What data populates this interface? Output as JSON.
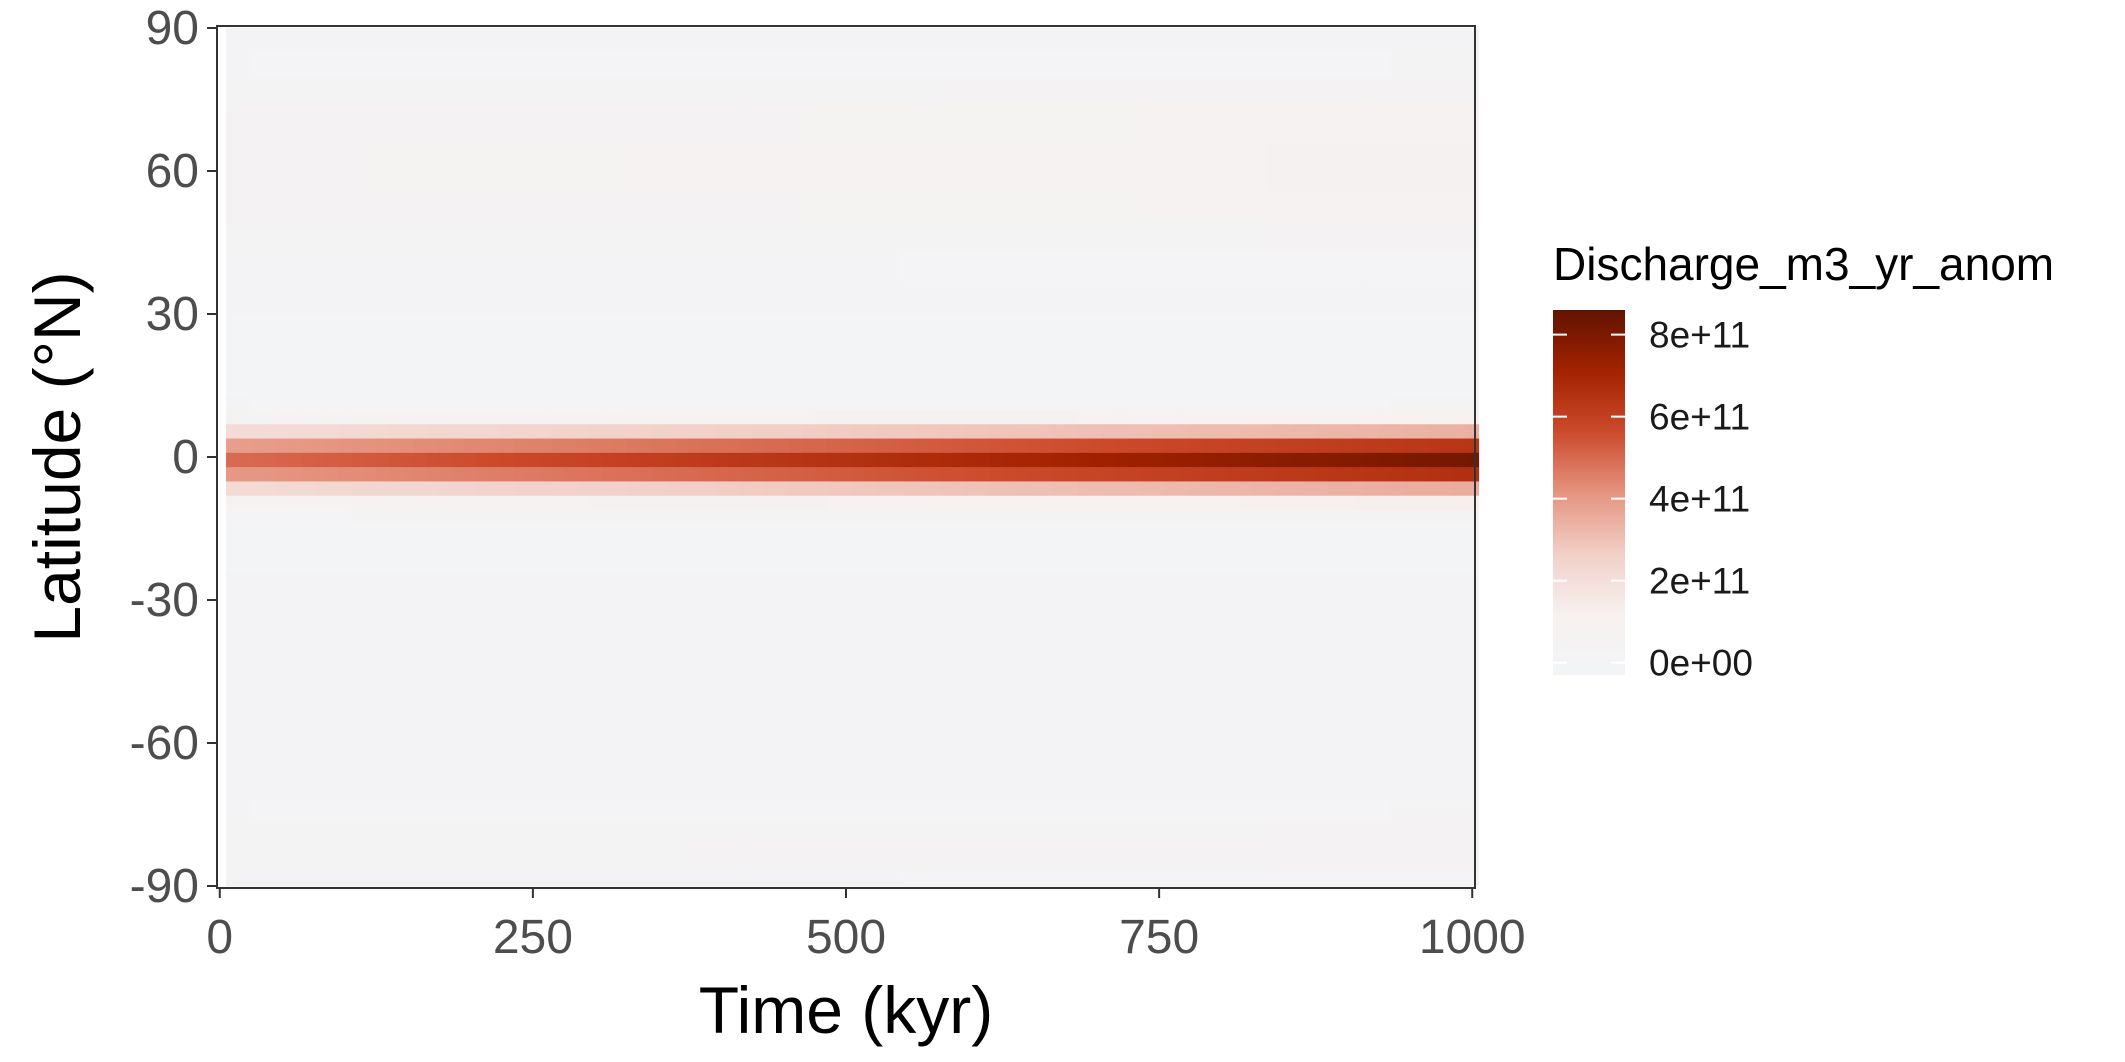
{
  "chart_data": {
    "type": "heatmap",
    "title": "",
    "xlabel": "Time (kyr)",
    "ylabel": "Latitude (°N)",
    "xlim": [
      0,
      1000
    ],
    "ylim": [
      -90,
      90
    ],
    "x_ticks": [
      0,
      250,
      500,
      750,
      1000
    ],
    "x_tick_labels": [
      "0",
      "250",
      "500",
      "750",
      "1000"
    ],
    "y_ticks": [
      -90,
      -60,
      -30,
      0,
      30,
      60,
      90
    ],
    "y_tick_labels": [
      "-90",
      "-60",
      "-30",
      "0",
      "30",
      "60",
      "90"
    ],
    "legend": {
      "title": "Discharge_m3_yr_anom",
      "placement": "right",
      "breaks": [
        0,
        200000000000,
        400000000000,
        600000000000,
        800000000000
      ],
      "labels": [
        "0e+00",
        "2e+11",
        "4e+11",
        "6e+11",
        "8e+11"
      ],
      "range": [
        -30000000000,
        860000000000
      ],
      "colors": [
        "#f2f4f7",
        "#f7f1f0",
        "#f1cfc7",
        "#e5937f",
        "#cc4a2c",
        "#a32200",
        "#611300"
      ]
    },
    "time_step_kyr": 10,
    "time_start_kyr": 10,
    "time_end_kyr": 1000,
    "latitude_bands": [
      {
        "lat_min": -90,
        "lat_max": -87,
        "value": 15000000000
      },
      {
        "lat_min": -87,
        "lat_max": -84,
        "value": 40000000000
      },
      {
        "lat_min": -84,
        "lat_max": -80,
        "value": 50000000000
      },
      {
        "lat_min": -80,
        "lat_max": -76,
        "value": 40000000000
      },
      {
        "lat_min": -76,
        "lat_max": -72,
        "value": 20000000000
      },
      {
        "lat_min": -72,
        "lat_max": -64,
        "value": 0
      },
      {
        "lat_min": -64,
        "lat_max": -56,
        "value": 8000000000
      },
      {
        "lat_min": -56,
        "lat_max": -40,
        "value": 12000000000
      },
      {
        "lat_min": -40,
        "lat_max": -24,
        "value": 5000000000
      },
      {
        "lat_min": -24,
        "lat_max": -14,
        "value": -8000000000
      },
      {
        "lat_min": -14,
        "lat_max": -11,
        "value": 30000000000
      },
      {
        "lat_min": -11,
        "lat_max": -8,
        "value": 110000000000
      },
      {
        "lat_min": -8,
        "lat_max": -5,
        "value": 300000000000
      },
      {
        "lat_min": -5,
        "lat_max": -2,
        "value": 560000000000
      },
      {
        "lat_min": -2,
        "lat_max": 1,
        "value": 690000000000
      },
      {
        "lat_min": 1,
        "lat_max": 4,
        "value": 540000000000
      },
      {
        "lat_min": 4,
        "lat_max": 7,
        "value": 290000000000
      },
      {
        "lat_min": 7,
        "lat_max": 10,
        "value": 100000000000
      },
      {
        "lat_min": 10,
        "lat_max": 13,
        "value": 20000000000
      },
      {
        "lat_min": 13,
        "lat_max": 30,
        "value": -12000000000
      },
      {
        "lat_min": 30,
        "lat_max": 37,
        "value": -4000000000
      },
      {
        "lat_min": 37,
        "lat_max": 43,
        "value": 15000000000
      },
      {
        "lat_min": 43,
        "lat_max": 50,
        "value": 40000000000
      },
      {
        "lat_min": 50,
        "lat_max": 56,
        "value": 70000000000
      },
      {
        "lat_min": 56,
        "lat_max": 66,
        "value": 85000000000
      },
      {
        "lat_min": 66,
        "lat_max": 74,
        "value": 70000000000
      },
      {
        "lat_min": 74,
        "lat_max": 80,
        "value": 45000000000
      },
      {
        "lat_min": 80,
        "lat_max": 85,
        "value": 20000000000
      },
      {
        "lat_min": 85,
        "lat_max": 90,
        "value": 5000000000
      }
    ],
    "time_trend": {
      "start_factor": 0.72,
      "end_factor": 1.18
    }
  }
}
